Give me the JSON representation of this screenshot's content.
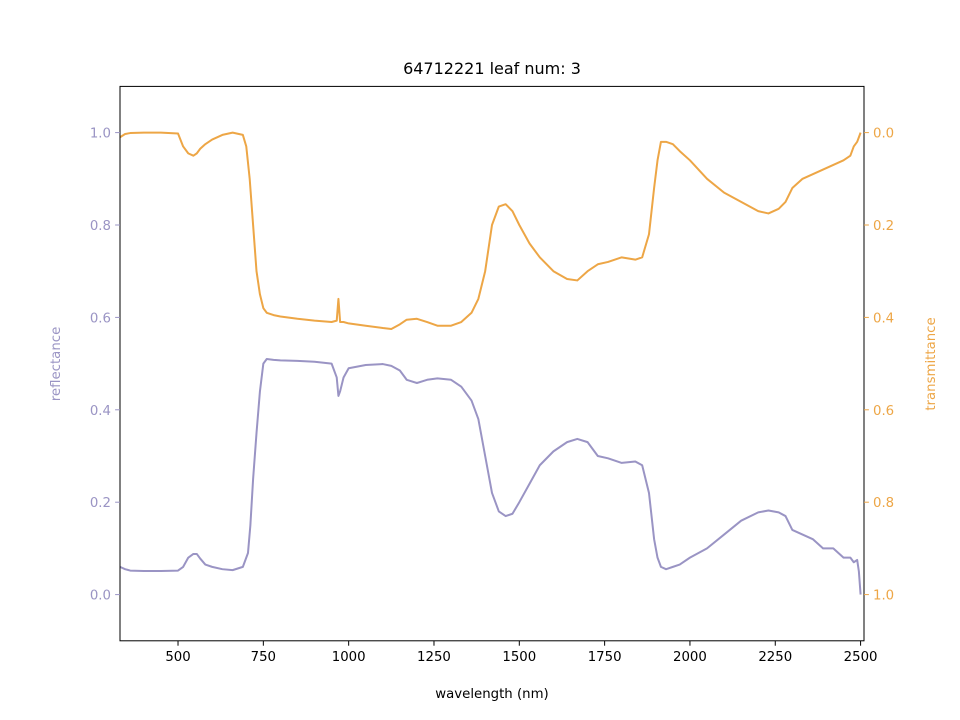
{
  "chart_data": {
    "type": "line",
    "title": "64712221 leaf num: 3",
    "xlabel": "wavelength (nm)",
    "ylabel_left": "reflectance",
    "ylabel_right": "transmittance",
    "xlim": [
      330,
      2510
    ],
    "ylim_left": [
      -0.1,
      1.1
    ],
    "ylim_right": [
      1.1,
      -0.1
    ],
    "right_axis_inverted": true,
    "grid": false,
    "x_ticks": [
      500,
      750,
      1000,
      1250,
      1500,
      1750,
      2000,
      2250,
      2500
    ],
    "y_ticks_left": [
      0.0,
      0.2,
      0.4,
      0.6,
      0.8,
      1.0
    ],
    "y_ticks_right": [
      0.0,
      0.2,
      0.4,
      0.6,
      0.8,
      1.0
    ],
    "x_tick_labels": [
      "500",
      "750",
      "1000",
      "1250",
      "1500",
      "1750",
      "2000",
      "2250",
      "2500"
    ],
    "y_tick_labels_left": [
      "0.0",
      "0.2",
      "0.4",
      "0.6",
      "0.8",
      "1.0"
    ],
    "y_tick_labels_right": [
      "0.0",
      "0.2",
      "0.4",
      "0.6",
      "0.8",
      "1.0"
    ],
    "colors": {
      "reflectance": "#9a94c4",
      "transmittance": "#eda646"
    },
    "series": [
      {
        "name": "reflectance",
        "axis": "left",
        "x": [
          330,
          345,
          360,
          400,
          450,
          500,
          515,
          530,
          545,
          555,
          565,
          580,
          600,
          630,
          660,
          690,
          705,
          712,
          720,
          730,
          740,
          750,
          760,
          780,
          800,
          850,
          900,
          950,
          965,
          970,
          975,
          985,
          1000,
          1050,
          1100,
          1125,
          1150,
          1170,
          1200,
          1230,
          1260,
          1300,
          1330,
          1360,
          1380,
          1400,
          1420,
          1440,
          1460,
          1480,
          1500,
          1530,
          1560,
          1600,
          1640,
          1670,
          1700,
          1730,
          1760,
          1800,
          1840,
          1860,
          1880,
          1895,
          1905,
          1915,
          1930,
          1950,
          1970,
          2000,
          2050,
          2100,
          2150,
          2200,
          2230,
          2260,
          2280,
          2300,
          2330,
          2360,
          2390,
          2420,
          2450,
          2470,
          2480,
          2490,
          2495,
          2500
        ],
        "y": [
          0.06,
          0.055,
          0.052,
          0.051,
          0.051,
          0.052,
          0.06,
          0.08,
          0.088,
          0.088,
          0.078,
          0.065,
          0.06,
          0.055,
          0.053,
          0.06,
          0.09,
          0.15,
          0.25,
          0.35,
          0.44,
          0.5,
          0.51,
          0.508,
          0.507,
          0.506,
          0.504,
          0.5,
          0.47,
          0.43,
          0.44,
          0.47,
          0.49,
          0.497,
          0.499,
          0.495,
          0.485,
          0.465,
          0.458,
          0.465,
          0.468,
          0.465,
          0.45,
          0.42,
          0.38,
          0.3,
          0.22,
          0.18,
          0.17,
          0.175,
          0.2,
          0.24,
          0.28,
          0.31,
          0.33,
          0.337,
          0.33,
          0.3,
          0.295,
          0.285,
          0.288,
          0.28,
          0.22,
          0.12,
          0.08,
          0.06,
          0.055,
          0.06,
          0.065,
          0.08,
          0.1,
          0.13,
          0.16,
          0.178,
          0.182,
          0.178,
          0.17,
          0.14,
          0.13,
          0.12,
          0.1,
          0.1,
          0.08,
          0.08,
          0.07,
          0.075,
          0.05,
          0.0
        ]
      },
      {
        "name": "transmittance",
        "axis": "right",
        "x": [
          330,
          345,
          360,
          400,
          450,
          500,
          515,
          530,
          545,
          555,
          565,
          580,
          600,
          630,
          660,
          690,
          700,
          710,
          720,
          730,
          740,
          750,
          760,
          780,
          800,
          850,
          900,
          950,
          965,
          970,
          975,
          985,
          1000,
          1050,
          1100,
          1125,
          1150,
          1170,
          1200,
          1230,
          1260,
          1300,
          1330,
          1360,
          1380,
          1400,
          1420,
          1440,
          1460,
          1480,
          1500,
          1530,
          1560,
          1600,
          1640,
          1670,
          1700,
          1730,
          1760,
          1800,
          1840,
          1860,
          1880,
          1895,
          1905,
          1915,
          1930,
          1950,
          1970,
          2000,
          2050,
          2100,
          2150,
          2200,
          2230,
          2260,
          2280,
          2300,
          2330,
          2360,
          2390,
          2420,
          2450,
          2470,
          2480,
          2490,
          2495,
          2500
        ],
        "y": [
          0.01,
          0.003,
          0.001,
          0.0,
          0.0,
          0.002,
          0.03,
          0.045,
          0.05,
          0.045,
          0.035,
          0.025,
          0.015,
          0.005,
          0.0,
          0.005,
          0.03,
          0.1,
          0.2,
          0.3,
          0.35,
          0.38,
          0.39,
          0.395,
          0.398,
          0.403,
          0.407,
          0.41,
          0.407,
          0.36,
          0.41,
          0.41,
          0.413,
          0.418,
          0.423,
          0.425,
          0.415,
          0.405,
          0.403,
          0.41,
          0.418,
          0.418,
          0.41,
          0.39,
          0.36,
          0.3,
          0.2,
          0.16,
          0.155,
          0.17,
          0.2,
          0.24,
          0.27,
          0.3,
          0.317,
          0.32,
          0.3,
          0.285,
          0.28,
          0.27,
          0.275,
          0.27,
          0.22,
          0.12,
          0.06,
          0.02,
          0.02,
          0.025,
          0.04,
          0.06,
          0.1,
          0.13,
          0.15,
          0.17,
          0.175,
          0.165,
          0.15,
          0.12,
          0.1,
          0.09,
          0.08,
          0.07,
          0.06,
          0.05,
          0.03,
          0.02,
          0.01,
          0.0
        ]
      }
    ]
  }
}
